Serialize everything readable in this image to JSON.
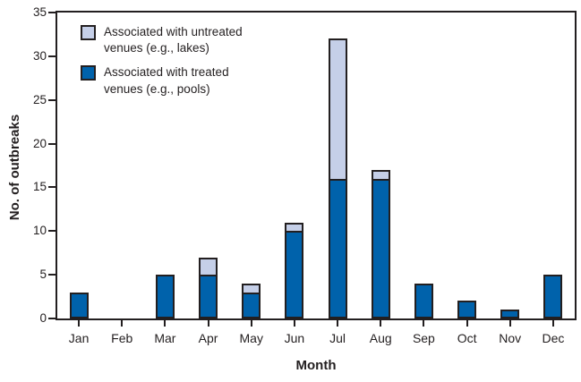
{
  "chart_data": {
    "type": "bar",
    "stacked": true,
    "title": "",
    "xlabel": "Month",
    "ylabel": "No. of outbreaks",
    "ylim": [
      0,
      35
    ],
    "ytick_step": 5,
    "grid": false,
    "legend_position": "top-left",
    "categories": [
      "Jan",
      "Feb",
      "Mar",
      "Apr",
      "May",
      "Jun",
      "Jul",
      "Aug",
      "Sep",
      "Oct",
      "Nov",
      "Dec"
    ],
    "series": [
      {
        "name": "Associated with treated venues (e.g., pools)",
        "color": "#0062ab",
        "values": [
          3,
          0,
          5,
          5,
          3,
          10,
          16,
          16,
          4,
          2,
          1,
          5
        ]
      },
      {
        "name": "Associated with untreated venues (e.g., lakes)",
        "color": "#c5cfe8",
        "values": [
          0,
          0,
          0,
          2,
          1,
          1,
          16,
          1,
          0,
          0,
          0,
          0
        ]
      }
    ],
    "totals": [
      3,
      0,
      5,
      7,
      4,
      11,
      32,
      17,
      4,
      2,
      1,
      5
    ],
    "axis_color": "#231f20",
    "background_color": "#ffffff"
  },
  "legend": {
    "items": [
      {
        "line1": "Associated with untreated",
        "line2": "venues (e.g., lakes)",
        "color": "#c5cfe8"
      },
      {
        "line1": "Associated with treated",
        "line2": "venues (e.g., pools)",
        "color": "#0062ab"
      }
    ]
  }
}
